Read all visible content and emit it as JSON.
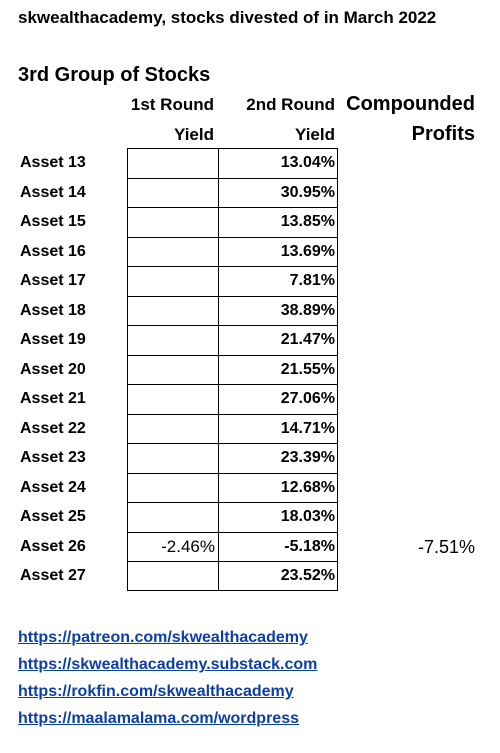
{
  "title": "skwealthacademy, stocks divested of in March 2022",
  "group_title": "3rd Group of Stocks",
  "headers": {
    "round1_line1": "1st Round",
    "round1_line2": "Yield",
    "round2_line1": "2nd Round",
    "round2_line2": "Yield",
    "compounded_line1": "Compounded",
    "compounded_line2": "Profits"
  },
  "rows": [
    {
      "asset": "Asset 13",
      "round1": "",
      "round2": "13.04%",
      "compounded": ""
    },
    {
      "asset": "Asset 14",
      "round1": "",
      "round2": "30.95%",
      "compounded": ""
    },
    {
      "asset": "Asset 15",
      "round1": "",
      "round2": "13.85%",
      "compounded": ""
    },
    {
      "asset": "Asset 16",
      "round1": "",
      "round2": "13.69%",
      "compounded": ""
    },
    {
      "asset": "Asset 17",
      "round1": "",
      "round2": "7.81%",
      "compounded": ""
    },
    {
      "asset": "Asset 18",
      "round1": "",
      "round2": "38.89%",
      "compounded": ""
    },
    {
      "asset": "Asset 19",
      "round1": "",
      "round2": "21.47%",
      "compounded": ""
    },
    {
      "asset": "Asset 20",
      "round1": "",
      "round2": "21.55%",
      "compounded": ""
    },
    {
      "asset": "Asset 21",
      "round1": "",
      "round2": "27.06%",
      "compounded": ""
    },
    {
      "asset": "Asset 22",
      "round1": "",
      "round2": "14.71%",
      "compounded": ""
    },
    {
      "asset": "Asset 23",
      "round1": "",
      "round2": "23.39%",
      "compounded": ""
    },
    {
      "asset": "Asset 24",
      "round1": "",
      "round2": "12.68%",
      "compounded": ""
    },
    {
      "asset": "Asset 25",
      "round1": "",
      "round2": "18.03%",
      "compounded": ""
    },
    {
      "asset": "Asset 26",
      "round1": "-2.46%",
      "round2": "-5.18%",
      "compounded": "-7.51%"
    },
    {
      "asset": "Asset 27",
      "round1": "",
      "round2": "23.52%",
      "compounded": ""
    }
  ],
  "links": [
    "https://patreon.com/skwealthacademy",
    "https://skwealthacademy.substack.com",
    "https://rokfin.com/skwealthacademy",
    "https://maalamalama.com/wordpress"
  ],
  "link_color": "#0b3ea8"
}
